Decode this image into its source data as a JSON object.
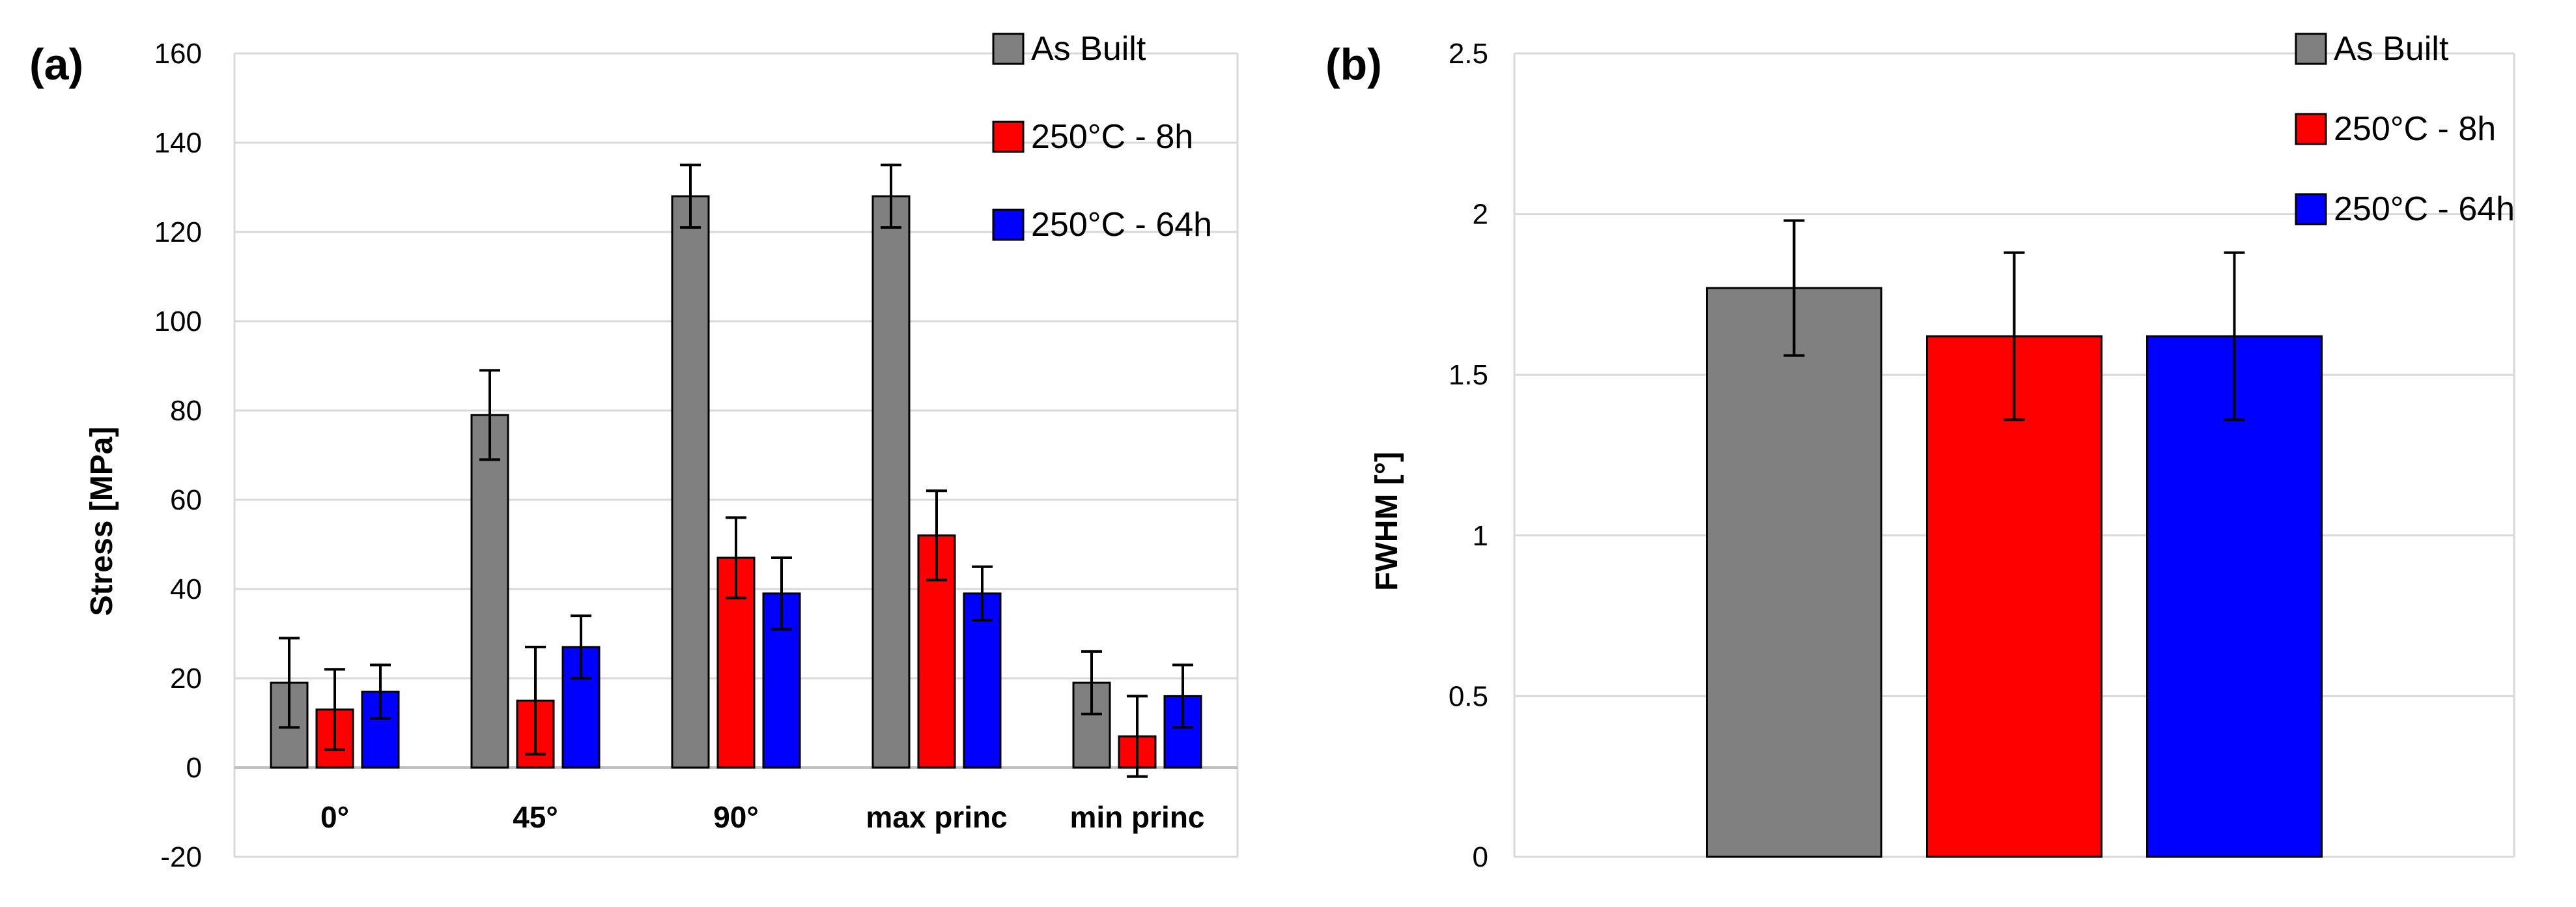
{
  "chart_data": [
    {
      "panel_label": "(a)",
      "type": "bar",
      "categories": [
        "0°",
        "45°",
        "90°",
        "max princ",
        "min princ"
      ],
      "series": [
        {
          "name": "As Built",
          "color": "#808080",
          "values": [
            19,
            79,
            128,
            128,
            19
          ],
          "errors": [
            10,
            10,
            7,
            7,
            7
          ]
        },
        {
          "name": "250°C - 8h",
          "color": "#ff0000",
          "values": [
            13,
            15,
            47,
            52,
            7
          ],
          "errors": [
            9,
            12,
            9,
            10,
            9
          ]
        },
        {
          "name": "250°C - 64h",
          "color": "#0000ff",
          "values": [
            17,
            27,
            39,
            39,
            16
          ],
          "errors": [
            6,
            7,
            8,
            6,
            7
          ]
        }
      ],
      "xlabel": "",
      "ylabel": "Stress [MPa]",
      "ylim": [
        -20,
        160
      ],
      "yticks": [
        "-20",
        "0",
        "20",
        "40",
        "60",
        "80",
        "100",
        "120",
        "140",
        "160"
      ],
      "grid": true,
      "legend": "top-right"
    },
    {
      "panel_label": "(b)",
      "type": "bar",
      "categories": [
        ""
      ],
      "series": [
        {
          "name": "As Built",
          "color": "#808080",
          "values": [
            1.77
          ],
          "errors": [
            0.21
          ]
        },
        {
          "name": "250°C - 8h",
          "color": "#ff0000",
          "values": [
            1.62
          ],
          "errors": [
            0.26
          ]
        },
        {
          "name": "250°C - 64h",
          "color": "#0000ff",
          "values": [
            1.62
          ],
          "errors": [
            0.26
          ]
        }
      ],
      "xlabel": "",
      "ylabel": "FWHM [°]",
      "ylim": [
        0,
        2.5
      ],
      "yticks": [
        "0",
        "0.5",
        "1",
        "1.5",
        "2",
        "2.5"
      ],
      "grid": true,
      "legend": "top-right"
    }
  ]
}
